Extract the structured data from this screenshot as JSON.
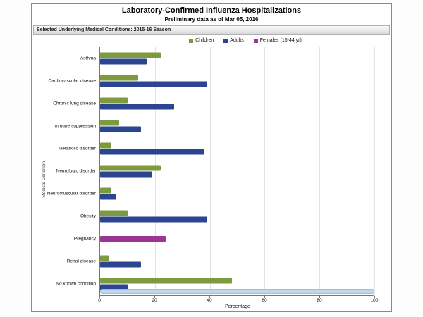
{
  "title": "Laboratory-Confirmed Influenza Hospitalizations",
  "subtitle": "Preliminary data as of Mar 05, 2016",
  "section_header": "Selected Underlying Medical Conditions: 2015-16 Season",
  "scrollbar_color": "#BDD7EE",
  "chart_data": {
    "type": "bar",
    "orientation": "horizontal",
    "title": "Laboratory-Confirmed Influenza Hospitalizations",
    "subtitle": "Preliminary data as of Mar 05, 2016",
    "xlabel": "Percentage",
    "ylabel": "Medical Condition",
    "xlim": [
      0,
      100
    ],
    "xticks": [
      0,
      20,
      40,
      60,
      80,
      100
    ],
    "grid": true,
    "legend_position": "top-center",
    "categories": [
      "Asthma",
      "Cardiovascular disease",
      "Chronic lung disease",
      "Immune suppression",
      "Metabolic disorder",
      "Neurologic disorder",
      "Neuromuscular disorder",
      "Obesity",
      "Pregnancy",
      "Renal disease",
      "No known condition"
    ],
    "series": [
      {
        "name": "Children",
        "color": "#7E9A3F",
        "values": [
          22,
          14,
          10,
          7,
          4,
          22,
          4,
          10,
          null,
          3,
          48
        ]
      },
      {
        "name": "Adults",
        "color": "#2B4590",
        "values": [
          17,
          39,
          27,
          15,
          38,
          19,
          6,
          39,
          null,
          15,
          10
        ]
      },
      {
        "name": "Females (15-44 yr)",
        "color": "#9C3494",
        "values": [
          null,
          null,
          null,
          null,
          null,
          null,
          null,
          null,
          24,
          null,
          null
        ]
      }
    ]
  }
}
